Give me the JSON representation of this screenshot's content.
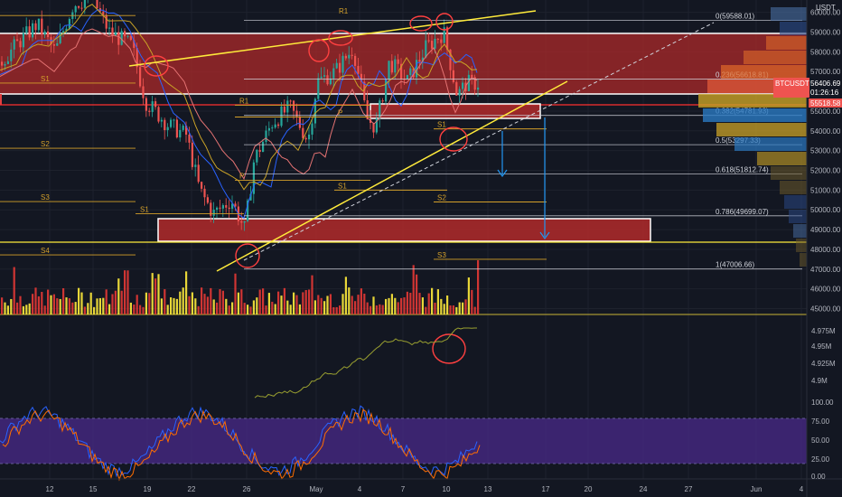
{
  "window": {
    "currency": "USDT",
    "symbol": "BTCUSDT"
  },
  "price_tags": {
    "last_price": "56406.69",
    "countdown": "01:26:16",
    "support_price": "55518.58"
  },
  "colors": {
    "background": "#131722",
    "up": "#26a69a",
    "down": "#ef5350",
    "yellow": "#ffeb3b",
    "band_red": "#b22a2a",
    "stoch_bg": "#4a2a8a",
    "fib_line": "#d1d4dc",
    "pivot": "#d4a02a",
    "obv": "#9aa030",
    "annotation_red": "#ff4040",
    "arrow_blue": "#2196f3"
  },
  "price_axis": {
    "labels": [
      "60000.00",
      "59000.00",
      "58000.00",
      "57000.00",
      "55000.00",
      "54000.00",
      "53000.00",
      "52000.00",
      "51000.00",
      "50000.00",
      "49000.00",
      "48000.00",
      "47000.00",
      "46000.00",
      "45000.00"
    ]
  },
  "obv_axis": {
    "labels": [
      "4.975M",
      "4.95M",
      "4.925M",
      "4.9M"
    ]
  },
  "stoch_axis": {
    "labels": [
      "100.00",
      "75.00",
      "50.00",
      "25.00",
      "0.00"
    ]
  },
  "date_axis": {
    "labels": [
      "12",
      "15",
      "19",
      "22",
      "26",
      "May",
      "4",
      "7",
      "10",
      "13",
      "17",
      "20",
      "24",
      "27",
      "Jun",
      "4"
    ]
  },
  "fib_levels": [
    {
      "label": "0(59588.01)",
      "value": 59588.01
    },
    {
      "label": "0.236(56618.81)",
      "value": 56618.81
    },
    {
      "label": "0.382(54781.93)",
      "value": 54781.93
    },
    {
      "label": "0.5(53297.33)",
      "value": 53297.33
    },
    {
      "label": "0.618(51812.74)",
      "value": 51812.74
    },
    {
      "label": "0.786(49699.07)",
      "value": 49699.07
    },
    {
      "label": "1(47006.66)",
      "value": 47006.66
    }
  ],
  "pivots": [
    {
      "label": "R1",
      "value": 59840
    },
    {
      "label": "S1",
      "value": 56420
    },
    {
      "label": "S2",
      "value": 53120
    },
    {
      "label": "S3",
      "value": 50420
    },
    {
      "label": "S4",
      "value": 47720
    },
    {
      "label": "R1",
      "value": 55300
    },
    {
      "label": "P",
      "value": 54700
    },
    {
      "label": "P",
      "value": 51500
    },
    {
      "label": "S1",
      "value": 49800
    },
    {
      "label": "S1",
      "value": 51000
    },
    {
      "label": "S1",
      "value": 54100
    },
    {
      "label": "S2",
      "value": 50400
    },
    {
      "label": "S3",
      "value": 47500
    }
  ],
  "chart_data": {
    "type": "candlestick",
    "x_axis": "date (daily ticks, April–June)",
    "y_range": [
      44800,
      60900
    ],
    "price": {
      "open": 53000,
      "last": 56406.69,
      "high": 59588.01,
      "low": 47006.66
    },
    "fib_retracement": {
      "high": 59588.01,
      "low": 47006.66
    },
    "zones": [
      {
        "name": "resistance",
        "from": 56000,
        "to": 59200
      },
      {
        "name": "support",
        "from": 48600,
        "to": 49800
      },
      {
        "name": "mid",
        "from": 54900,
        "to": 55350
      }
    ],
    "stochastic": {
      "range": [
        0,
        100
      ],
      "upper": 80,
      "lower": 20
    },
    "obv": {
      "range": [
        "4.9M",
        "4.975M"
      ]
    }
  }
}
